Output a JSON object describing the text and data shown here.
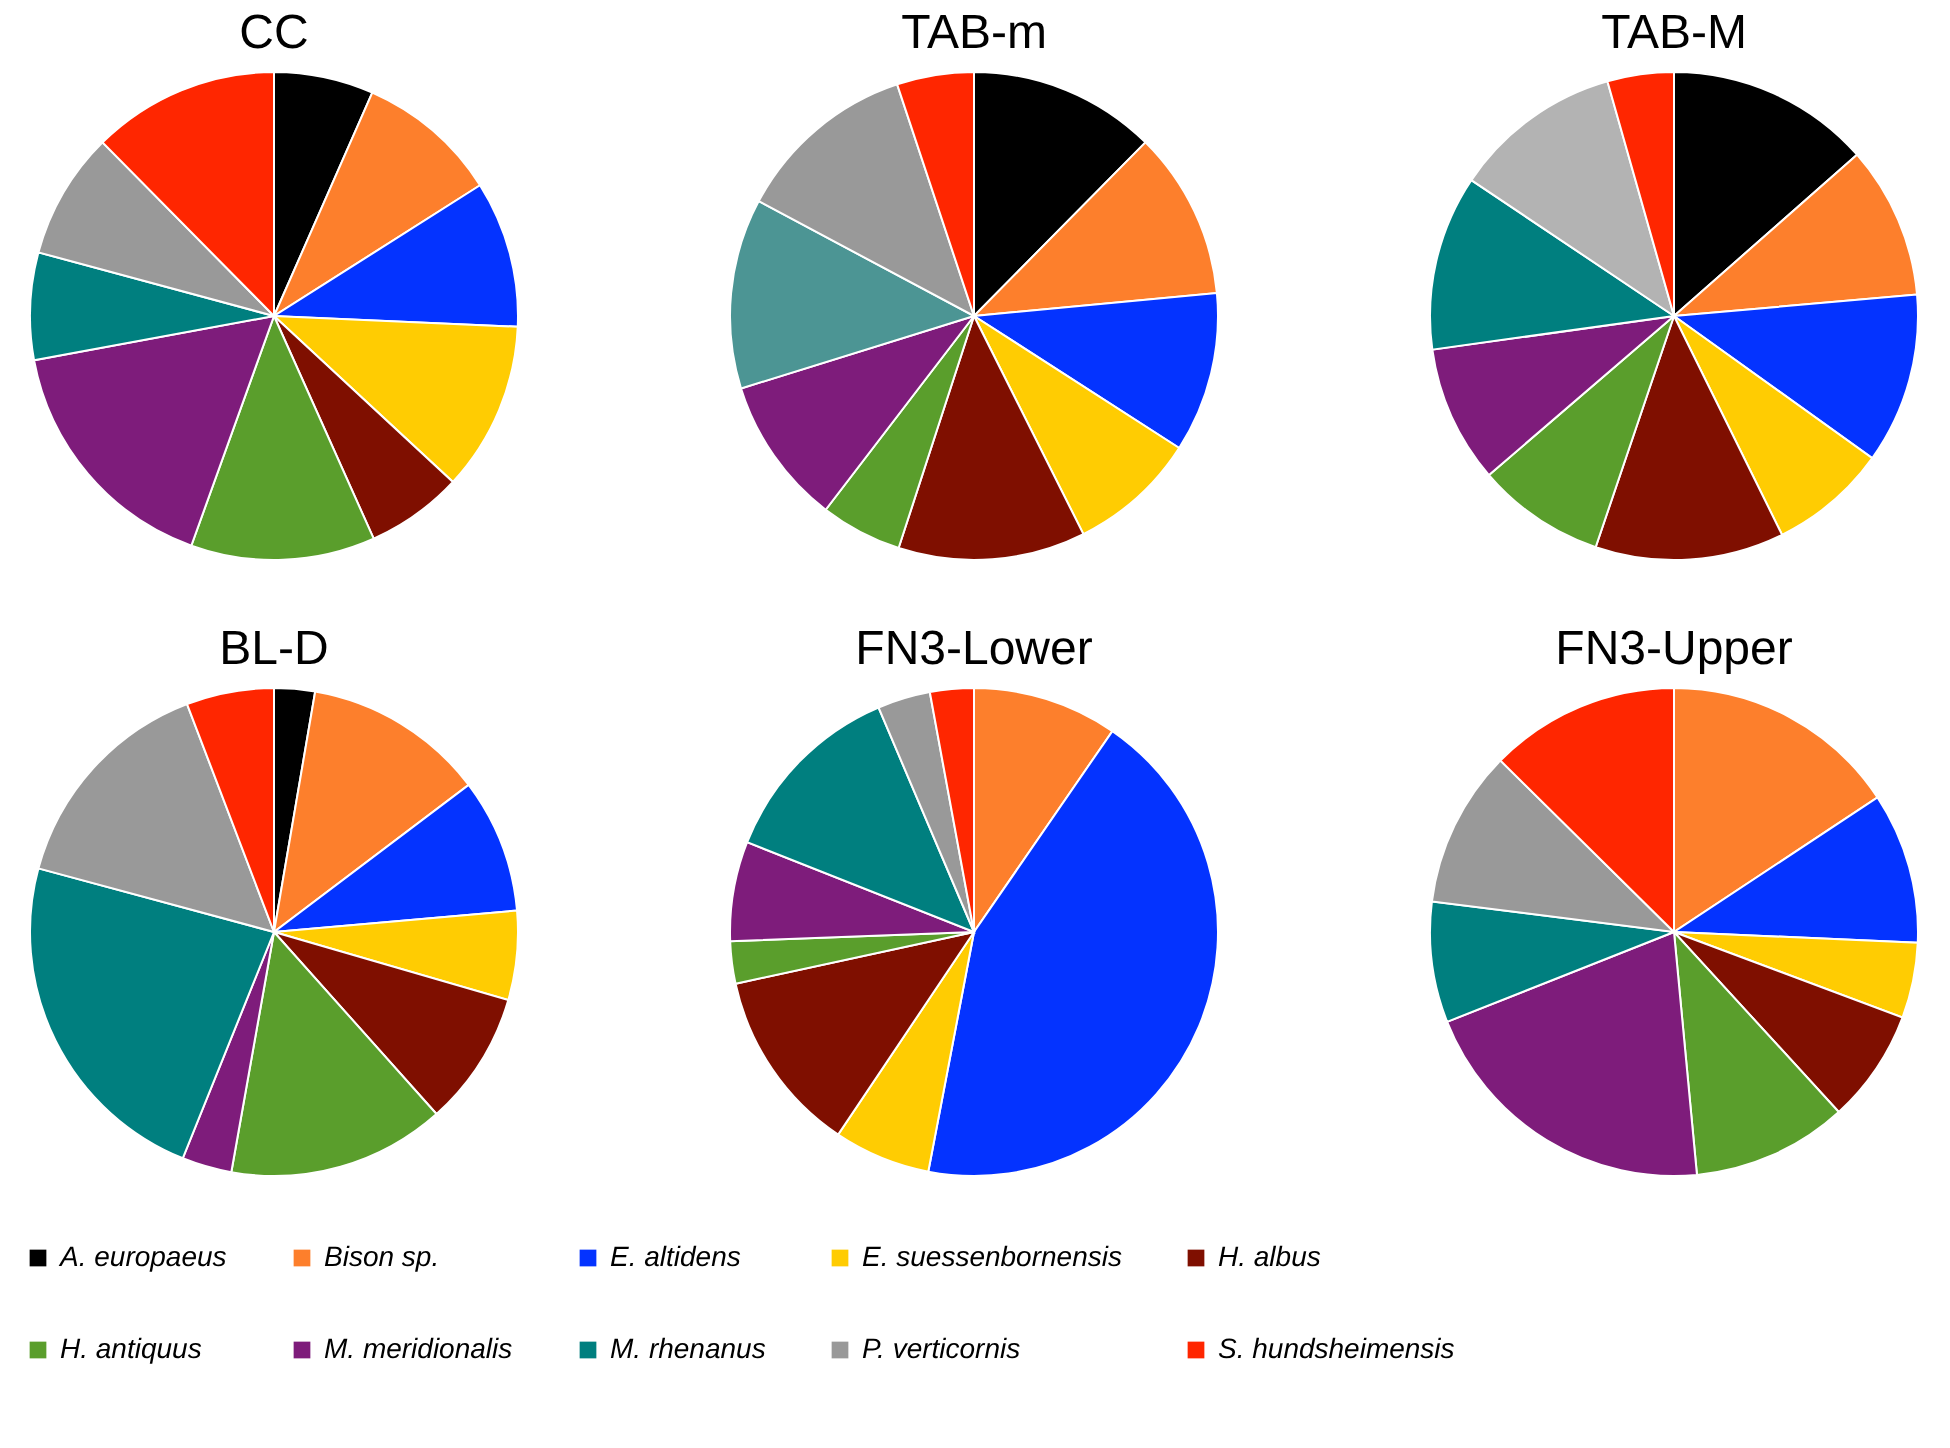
{
  "chart_data": {
    "type": "pie",
    "legend": "bottom",
    "categories": [
      "A. europaeus",
      "Bison sp.",
      "E. altidens",
      "E. suessenbornensis",
      "H. albus",
      "H. antiquus",
      "M. meridionalis",
      "M. rhenanus",
      "P. verticornis",
      "S. hundsheimensis"
    ],
    "series": [
      {
        "name": "CC",
        "values": [
          6.6,
          9.4,
          9.7,
          11.2,
          6.4,
          12.2,
          16.6,
          7.1,
          8.4,
          12.4
        ],
        "colors": [
          "#000000",
          "#fd7f2c",
          "#0433ff",
          "#ffcc02",
          "#7f0f00",
          "#5a9e2c",
          "#7e1c7b",
          "#007f7f",
          "#999999",
          "#ff2600"
        ]
      },
      {
        "name": "TAB-m",
        "values": [
          12.4,
          11.1,
          10.6,
          8.5,
          12.4,
          5.4,
          9.8,
          12.6,
          12.1,
          5.1
        ],
        "colors": [
          "#000000",
          "#fd7f2c",
          "#0433ff",
          "#ffcc02",
          "#7f0f00",
          "#5a9e2c",
          "#7e1c7b",
          "#4c9594",
          "#999999",
          "#ff2600"
        ]
      },
      {
        "name": "TAB-M",
        "values": [
          13.5,
          10.1,
          11.3,
          7.8,
          12.5,
          8.5,
          9.1,
          11.6,
          11.2,
          4.4
        ],
        "colors": [
          "#000000",
          "#fd7f2c",
          "#0433ff",
          "#ffcc02",
          "#7f0f00",
          "#5a9e2c",
          "#7e1c7b",
          "#007f7f",
          "#b3b3b3",
          "#ff2600"
        ]
      },
      {
        "name": "BL-D",
        "values": [
          2.7,
          12.0,
          8.9,
          5.9,
          8.9,
          14.4,
          3.3,
          23.1,
          15.0,
          5.8
        ],
        "colors": [
          "#000000",
          "#fd7f2c",
          "#0433ff",
          "#ffcc02",
          "#7f0f00",
          "#5a9e2c",
          "#7e1c7b",
          "#007f7f",
          "#999999",
          "#ff2600"
        ]
      },
      {
        "name": "FN3-Lower",
        "values": [
          0,
          9.6,
          43.4,
          6.4,
          12.2,
          2.8,
          6.6,
          12.6,
          3.5,
          2.9
        ],
        "colors": [
          "#000000",
          "#fd7f2c",
          "#0433ff",
          "#ffcc02",
          "#7f0f00",
          "#5a9e2c",
          "#7e1c7b",
          "#007f7f",
          "#999999",
          "#ff2600"
        ]
      },
      {
        "name": "FN3-Upper",
        "values": [
          0,
          15.7,
          10.0,
          5.0,
          7.5,
          10.3,
          20.5,
          8.0,
          10.4,
          12.6
        ],
        "colors": [
          "#000000",
          "#fd7f2c",
          "#0433ff",
          "#ffcc02",
          "#7f0f00",
          "#5a9e2c",
          "#7e1c7b",
          "#007f7f",
          "#999999",
          "#ff2600"
        ]
      }
    ]
  }
}
